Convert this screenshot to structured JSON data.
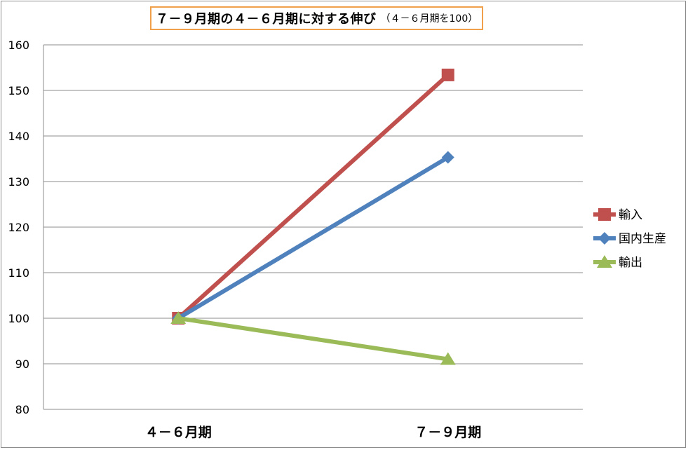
{
  "chart_data": {
    "type": "line",
    "title": "７－９月期の４－６月期に対する伸び",
    "subtitle": "（４－６月期を100）",
    "categories": [
      "４－６月期",
      "７－９月期"
    ],
    "ylim": [
      80,
      160
    ],
    "yticks": [
      80,
      90,
      100,
      110,
      120,
      130,
      140,
      150,
      160
    ],
    "grid": true,
    "legend_position": "right",
    "series": [
      {
        "name": "輸入",
        "values": [
          100,
          153.4
        ],
        "color": "#c0504d",
        "marker": "square"
      },
      {
        "name": "国内生産",
        "values": [
          100,
          135.3
        ],
        "color": "#4f81bd",
        "marker": "diamond"
      },
      {
        "name": "輸出",
        "values": [
          100,
          91.0
        ],
        "color": "#9bbb59",
        "marker": "triangle"
      }
    ]
  }
}
